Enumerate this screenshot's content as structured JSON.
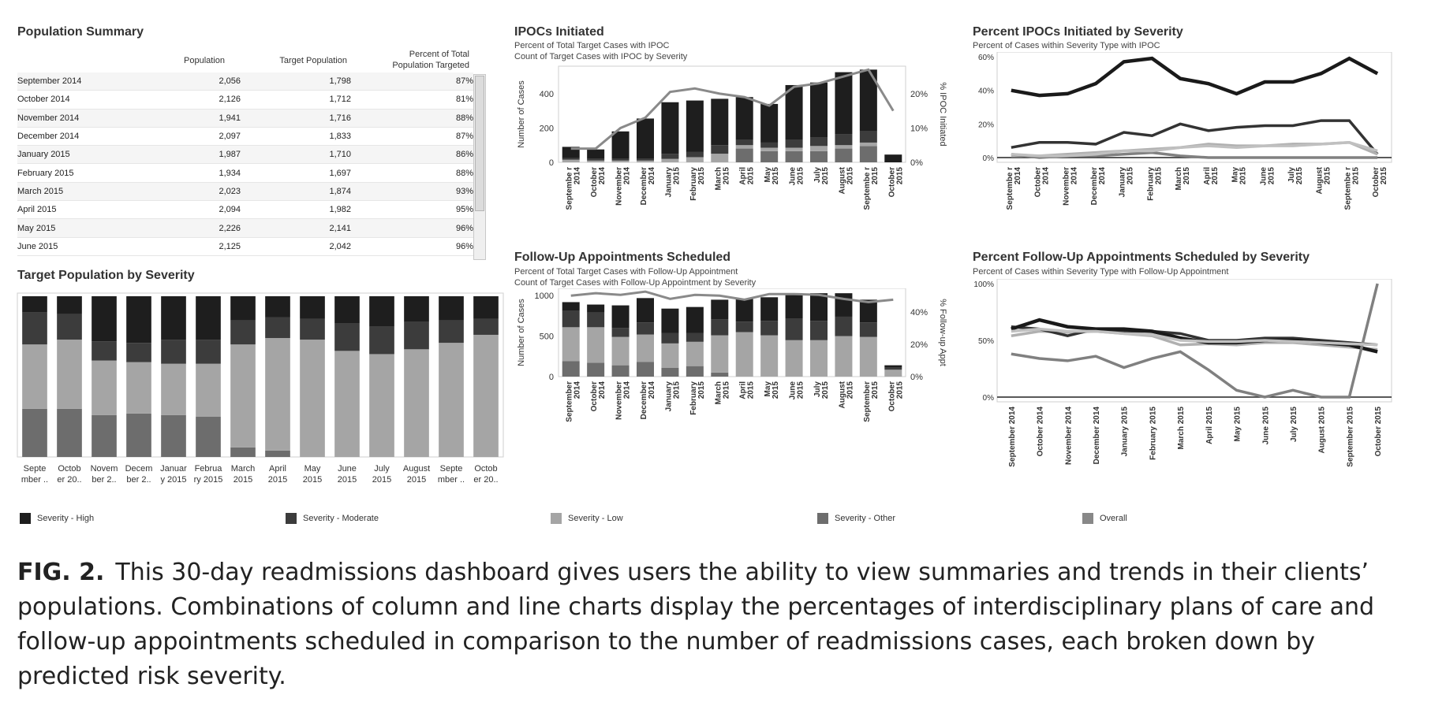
{
  "population_summary": {
    "title": "Population Summary",
    "columns": [
      "Population",
      "Target Population",
      "Percent of Total",
      "Population Targeted"
    ],
    "rows": [
      [
        "September 2014",
        "2,056",
        "1,798",
        "87%"
      ],
      [
        "October 2014",
        "2,126",
        "1,712",
        "81%"
      ],
      [
        "November 2014",
        "1,941",
        "1,716",
        "88%"
      ],
      [
        "December 2014",
        "2,097",
        "1,833",
        "87%"
      ],
      [
        "January 2015",
        "1,987",
        "1,710",
        "86%"
      ],
      [
        "February 2015",
        "1,934",
        "1,697",
        "88%"
      ],
      [
        "March 2015",
        "2,023",
        "1,874",
        "93%"
      ],
      [
        "April 2015",
        "2,094",
        "1,982",
        "95%"
      ],
      [
        "May 2015",
        "2,226",
        "2,141",
        "96%"
      ],
      [
        "June 2015",
        "2,125",
        "2,042",
        "96%"
      ]
    ]
  },
  "chart_data": [
    {
      "id": "target_by_severity",
      "type": "bar",
      "title": "Target Population by Severity",
      "categories": [
        "Septe mber ..",
        "Octob er 20..",
        "Novem ber 2..",
        "Decem ber 2..",
        "Januar y 2015",
        "Februa ry 2015",
        "March 2015",
        "April 2015",
        "May 2015",
        "June 2015",
        "July 2015",
        "August 2015",
        "Septe mber ..",
        "Octob er 20.."
      ],
      "stacked_percent": true,
      "ylim": [
        0,
        100
      ],
      "series": [
        {
          "name": "Severity - Other",
          "values": [
            30,
            30,
            26,
            27,
            26,
            25,
            6,
            4,
            0,
            0,
            0,
            0,
            0,
            0
          ]
        },
        {
          "name": "Severity - Low",
          "values": [
            40,
            43,
            34,
            32,
            32,
            33,
            64,
            70,
            73,
            66,
            64,
            67,
            71,
            76
          ]
        },
        {
          "name": "Severity - Moderate",
          "values": [
            20,
            16,
            12,
            12,
            15,
            15,
            15,
            13,
            13,
            17,
            17,
            17,
            14,
            10
          ]
        },
        {
          "name": "Severity - High",
          "values": [
            10,
            11,
            28,
            29,
            27,
            27,
            15,
            13,
            14,
            17,
            19,
            16,
            15,
            14
          ]
        }
      ]
    },
    {
      "id": "ipocs_initiated",
      "type": "bar",
      "title": "IPOCs Initiated",
      "subtitle": [
        "Percent of Total Target Cases with IPOC",
        "Count of Target Cases with IPOC by Severity"
      ],
      "categories": [
        "Septembe r 2014",
        "October 2014",
        "November 2014",
        "December 2014",
        "January 2015",
        "February 2015",
        "March 2015",
        "April 2015",
        "May 2015",
        "June 2015",
        "July 2015",
        "August 2015",
        "Septembe r 2015",
        "October 2015"
      ],
      "ylabel": "Number of Cases",
      "y2label": "% IPOC Initiated",
      "ylim": [
        0,
        560
      ],
      "yticks": [
        "0",
        "200",
        "400"
      ],
      "y2lim": [
        0,
        28
      ],
      "y2ticks": [
        "0%",
        "10%",
        "20%"
      ],
      "series": [
        {
          "name": "Severity - Other",
          "values": [
            0,
            0,
            0,
            0,
            0,
            0,
            0,
            80,
            65,
            65,
            65,
            80,
            95,
            0
          ]
        },
        {
          "name": "Severity - Low",
          "values": [
            15,
            10,
            10,
            10,
            20,
            30,
            50,
            20,
            20,
            20,
            30,
            20,
            20,
            0
          ]
        },
        {
          "name": "Severity - Moderate",
          "values": [
            10,
            10,
            10,
            10,
            30,
            30,
            50,
            30,
            30,
            45,
            50,
            65,
            65,
            0
          ]
        },
        {
          "name": "Severity - High",
          "values": [
            65,
            55,
            160,
            235,
            300,
            300,
            270,
            250,
            225,
            320,
            320,
            360,
            360,
            45
          ]
        }
      ],
      "line": {
        "name": "Overall",
        "values": [
          4,
          4,
          10,
          13,
          20.5,
          21.5,
          20,
          19,
          16.5,
          22,
          23,
          25,
          27,
          15
        ]
      }
    },
    {
      "id": "pct_ipoc_by_severity",
      "type": "line",
      "title": "Percent IPOCs Initiated by Severity",
      "subtitle": [
        "Percent of Cases within Severity Type with IPOC"
      ],
      "categories": [
        "Septembe r 2014",
        "October 2014",
        "November 2014",
        "December 2014",
        "January 2015",
        "February 2015",
        "March 2015",
        "April 2015",
        "May 2015",
        "June 2015",
        "July 2015",
        "August 2015",
        "Septembe r 2015",
        "October 2015"
      ],
      "ylim": [
        0,
        60
      ],
      "yticks": [
        "0%",
        "20%",
        "40%",
        "60%"
      ],
      "series": [
        {
          "name": "Severity - High",
          "values": [
            40,
            37,
            38,
            44,
            57,
            59,
            47,
            44,
            38,
            45,
            45,
            50,
            59,
            50
          ]
        },
        {
          "name": "Severity - Moderate",
          "values": [
            6,
            9,
            9,
            8,
            15,
            13,
            20,
            16,
            18,
            19,
            19,
            22,
            22,
            2
          ]
        },
        {
          "name": "Severity - Low",
          "values": [
            1,
            1,
            2,
            3,
            4,
            5,
            6,
            8,
            7,
            7,
            8,
            8,
            9,
            2
          ]
        },
        {
          "name": "Severity - Other",
          "values": [
            2,
            0,
            1,
            1,
            2,
            3,
            1,
            0,
            0,
            0,
            0,
            0,
            0,
            0
          ]
        },
        {
          "name": "Overall",
          "values": [
            2,
            1,
            1,
            2,
            4,
            4,
            6,
            7,
            6,
            7,
            7,
            8,
            9,
            4
          ]
        }
      ]
    },
    {
      "id": "followup_scheduled",
      "type": "bar",
      "title": "Follow-Up Appointments Scheduled",
      "subtitle": [
        "Percent of Total Target Cases with Follow-Up Appointment",
        "Count of Target Cases with Follow-Up Appointment by Severity"
      ],
      "categories": [
        "September 2014",
        "October 2014",
        "November 2014",
        "December 2014",
        "January 2015",
        "February 2015",
        "March 2015",
        "April 2015",
        "May 2015",
        "June 2015",
        "July 2015",
        "August 2015",
        "September 2015",
        "October 2015"
      ],
      "ylabel": "Number of Cases",
      "y2label": "% Follow-up Appt",
      "ylim": [
        0,
        1090
      ],
      "yticks": [
        "0",
        "500",
        "1000"
      ],
      "y2lim": [
        0,
        54.5
      ],
      "y2ticks": [
        "0%",
        "20%",
        "40%"
      ],
      "series": [
        {
          "name": "Severity - Other",
          "values": [
            190,
            170,
            140,
            180,
            110,
            130,
            50,
            0,
            0,
            0,
            0,
            0,
            0,
            0
          ]
        },
        {
          "name": "Severity - Low",
          "values": [
            420,
            440,
            350,
            340,
            300,
            300,
            460,
            550,
            510,
            450,
            450,
            500,
            490,
            85
          ]
        },
        {
          "name": "Severity - Moderate",
          "values": [
            200,
            180,
            110,
            150,
            130,
            110,
            200,
            130,
            180,
            270,
            240,
            240,
            180,
            25
          ]
        },
        {
          "name": "Severity - High",
          "values": [
            110,
            100,
            280,
            300,
            300,
            320,
            240,
            280,
            290,
            300,
            340,
            290,
            280,
            30
          ]
        }
      ],
      "line": {
        "name": "Overall",
        "values": [
          50,
          51.5,
          50.5,
          52.5,
          48,
          50.5,
          50,
          47.5,
          51,
          51,
          50.5,
          48,
          46,
          47.5
        ]
      }
    },
    {
      "id": "pct_followup_by_severity",
      "type": "line",
      "title": "Percent Follow-Up Appointments Scheduled by Severity",
      "subtitle": [
        "Percent of Cases within Severity Type with Follow-Up Appointment"
      ],
      "categories": [
        "September 2014",
        "October 2014",
        "November 2014",
        "December 2014",
        "January 2015",
        "February 2015",
        "March 2015",
        "April 2015",
        "May 2015",
        "June 2015",
        "July 2015",
        "August 2015",
        "September 2015",
        "October 2015"
      ],
      "ylim": [
        0,
        100
      ],
      "yticks": [
        "0%",
        "50%",
        "100%"
      ],
      "series": [
        {
          "name": "Severity - Low",
          "values": [
            54,
            58,
            57,
            58,
            56,
            54,
            46,
            47,
            46,
            48,
            48,
            46,
            44,
            42
          ]
        },
        {
          "name": "Severity - Moderate",
          "values": [
            62,
            60,
            54,
            60,
            58,
            58,
            56,
            50,
            50,
            52,
            52,
            50,
            48,
            46
          ]
        },
        {
          "name": "Severity - High",
          "values": [
            60,
            68,
            62,
            60,
            60,
            58,
            52,
            48,
            48,
            50,
            50,
            48,
            46,
            40
          ]
        },
        {
          "name": "Severity - Other",
          "values": [
            38,
            34,
            32,
            36,
            26,
            34,
            40,
            24,
            6,
            0,
            6,
            0,
            0,
            100
          ]
        },
        {
          "name": "Overall",
          "values": [
            58,
            60,
            58,
            58,
            56,
            55,
            50,
            49,
            49,
            50,
            49,
            48,
            47,
            46
          ]
        }
      ]
    }
  ],
  "legend": [
    {
      "label": "Severity - High",
      "color": "#1e1e1e"
    },
    {
      "label": "Severity - Moderate",
      "color": "#3c3c3c"
    },
    {
      "label": "Severity - Low",
      "color": "#a5a5a5"
    },
    {
      "label": "Severity - Other",
      "color": "#6d6d6d"
    },
    {
      "label": "Overall",
      "color": "#888888"
    }
  ],
  "colors": {
    "Severity - High": "#1e1e1e",
    "Severity - Moderate": "#3c3c3c",
    "Severity - Low": "#a5a5a5",
    "Severity - Other": "#6d6d6d",
    "Overall": "#888888",
    "line_high": "#1a1a1a",
    "line_moderate": "#333333",
    "line_low": "#b0b0b0",
    "line_other": "#808080",
    "line_overall": "#c0c0c0"
  },
  "caption": {
    "label": "FIG. 2.",
    "text": "This 30-day readmissions dashboard gives users the ability to view summaries and trends in their clients’ populations. Combinations of column and line charts display the percentages of interdisciplinary plans of care and follow-up appointments scheduled in comparison to the number of readmissions cases, each broken down by predicted risk severity."
  }
}
